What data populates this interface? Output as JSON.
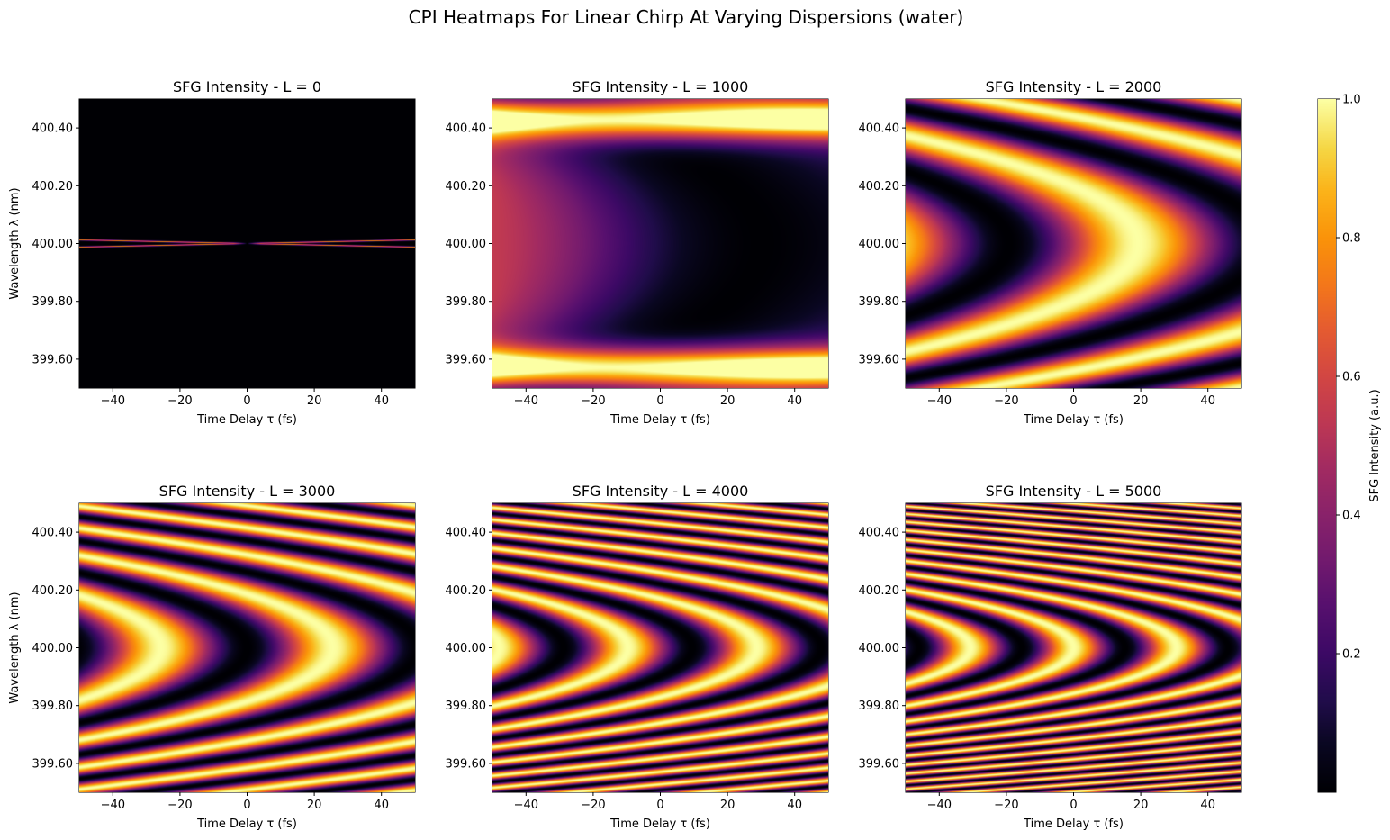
{
  "figure": {
    "title": "CPI Heatmaps For Linear Chirp At Varying Dispersions (water)"
  },
  "chart_data": [
    {
      "type": "heatmap",
      "title": "SFG Intensity - L = 0",
      "L": 0,
      "xlabel": "Time Delay τ (fs)",
      "ylabel": "Wavelength λ (nm)",
      "xlim": [
        -50,
        50
      ],
      "ylim": [
        399.5,
        400.5
      ],
      "xticks": [
        -40,
        -20,
        0,
        20,
        40
      ],
      "yticks": [
        "399.60",
        "399.80",
        "400.00",
        "400.20",
        "400.40"
      ],
      "colormap": "inferno"
    },
    {
      "type": "heatmap",
      "title": "SFG Intensity - L = 1000",
      "L": 1000,
      "xlabel": "Time Delay τ (fs)",
      "ylabel": "",
      "xlim": [
        -50,
        50
      ],
      "ylim": [
        399.5,
        400.5
      ],
      "xticks": [
        -40,
        -20,
        0,
        20,
        40
      ],
      "yticks": [
        "399.60",
        "399.80",
        "400.00",
        "400.20",
        "400.40"
      ],
      "colormap": "inferno"
    },
    {
      "type": "heatmap",
      "title": "SFG Intensity - L = 2000",
      "L": 2000,
      "xlabel": "Time Delay τ (fs)",
      "ylabel": "",
      "xlim": [
        -50,
        50
      ],
      "ylim": [
        399.5,
        400.5
      ],
      "xticks": [
        -40,
        -20,
        0,
        20,
        40
      ],
      "yticks": [
        "399.60",
        "399.80",
        "400.00",
        "400.20",
        "400.40"
      ],
      "colormap": "inferno"
    },
    {
      "type": "heatmap",
      "title": "SFG Intensity - L = 3000",
      "L": 3000,
      "xlabel": "Time Delay τ (fs)",
      "ylabel": "Wavelength λ (nm)",
      "xlim": [
        -50,
        50
      ],
      "ylim": [
        399.5,
        400.5
      ],
      "xticks": [
        -40,
        -20,
        0,
        20,
        40
      ],
      "yticks": [
        "399.60",
        "399.80",
        "400.00",
        "400.20",
        "400.40"
      ],
      "colormap": "inferno"
    },
    {
      "type": "heatmap",
      "title": "SFG Intensity - L = 4000",
      "L": 4000,
      "xlabel": "Time Delay τ (fs)",
      "ylabel": "",
      "xlim": [
        -50,
        50
      ],
      "ylim": [
        399.5,
        400.5
      ],
      "xticks": [
        -40,
        -20,
        0,
        20,
        40
      ],
      "yticks": [
        "399.60",
        "399.80",
        "400.00",
        "400.20",
        "400.40"
      ],
      "colormap": "inferno"
    },
    {
      "type": "heatmap",
      "title": "SFG Intensity - L = 5000",
      "L": 5000,
      "xlabel": "Time Delay τ (fs)",
      "ylabel": "",
      "xlim": [
        -50,
        50
      ],
      "ylim": [
        399.5,
        400.5
      ],
      "xticks": [
        -40,
        -20,
        0,
        20,
        40
      ],
      "yticks": [
        "399.60",
        "399.80",
        "400.00",
        "400.20",
        "400.40"
      ],
      "colormap": "inferno"
    }
  ],
  "colorbar": {
    "label": "SFG Intensity (a.u.)",
    "range": [
      0,
      1.0
    ],
    "ticks": [
      "0.2",
      "0.4",
      "0.6",
      "0.8",
      "1.0"
    ],
    "colormap": "inferno"
  }
}
